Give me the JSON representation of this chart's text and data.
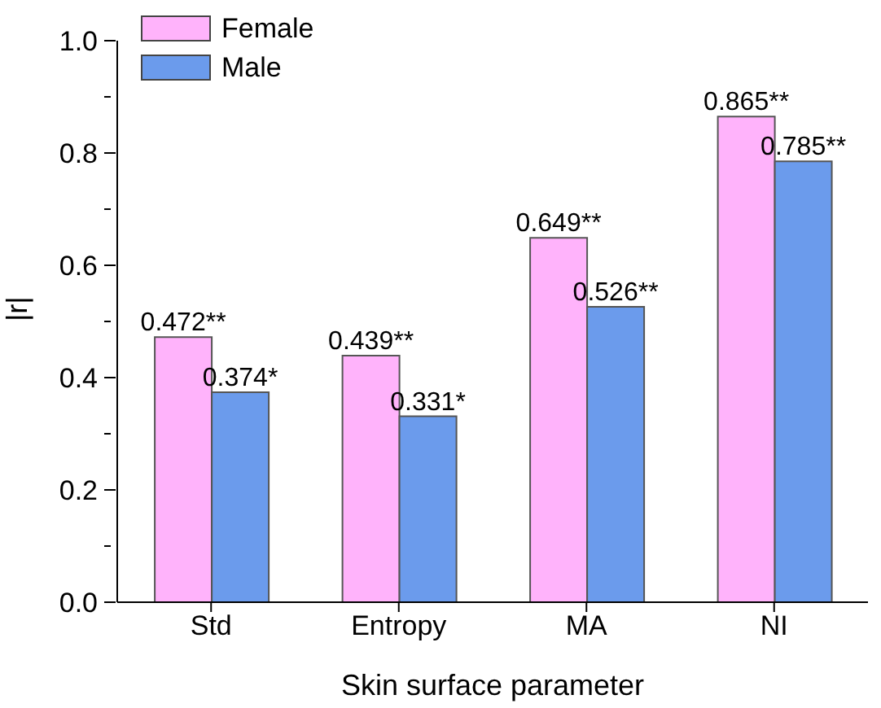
{
  "chart_data": {
    "type": "bar",
    "xlabel": "Skin surface parameter",
    "ylabel": "|r|",
    "categories": [
      "Std",
      "Entropy",
      "MA",
      "NI"
    ],
    "series": [
      {
        "name": "Female",
        "color": "#ffb3fb",
        "values": [
          0.472,
          0.439,
          0.649,
          0.865
        ],
        "value_labels": [
          "0.472**",
          "0.439**",
          "0.649**",
          "0.865**"
        ]
      },
      {
        "name": "Male",
        "color": "#6b9bec",
        "values": [
          0.374,
          0.331,
          0.526,
          0.785
        ],
        "value_labels": [
          "0.374*",
          "0.331*",
          "0.526**",
          "0.785**"
        ]
      }
    ],
    "ylim": [
      0,
      1
    ],
    "yticks": [
      {
        "value": 0,
        "label": "0.0"
      },
      {
        "value": 0.1,
        "label": null
      },
      0.2,
      {
        "value": 0.3,
        "label": null
      },
      0.4,
      {
        "value": 0.5,
        "label": null
      },
      0.6,
      {
        "value": 0.7,
        "label": null
      },
      0.8,
      {
        "value": 0.9,
        "label": null
      },
      {
        "value": 1,
        "label": "1.0"
      }
    ],
    "grid": false,
    "legend": "top left"
  }
}
